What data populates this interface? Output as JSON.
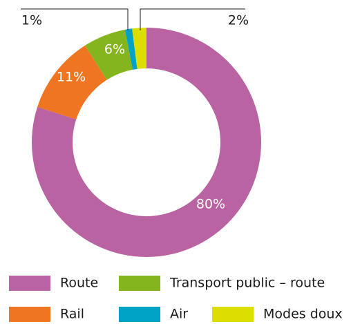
{
  "chart_data": {
    "type": "donut",
    "categories": [
      "Route",
      "Rail",
      "Transport public – route",
      "Air",
      "Modes doux"
    ],
    "values": [
      80,
      11,
      6,
      1,
      2
    ],
    "value_labels": [
      "80%",
      "11%",
      "6%",
      "1%",
      "2%"
    ],
    "colors": [
      "#b963a3",
      "#ee7623",
      "#84b51f",
      "#00a3c6",
      "#dcdd00"
    ],
    "legend": "bottom"
  }
}
